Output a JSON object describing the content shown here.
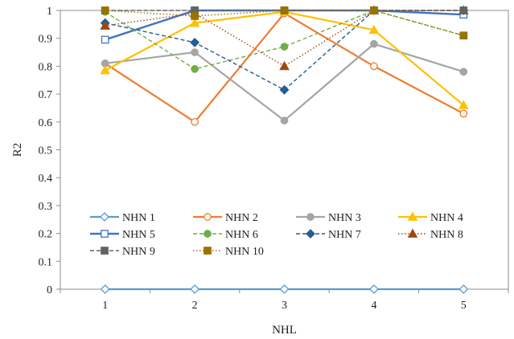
{
  "chart_data": {
    "type": "line",
    "title": "",
    "xlabel": "NHL",
    "ylabel": "R2",
    "categories": [
      "1",
      "2",
      "3",
      "4",
      "5"
    ],
    "ylim": [
      0,
      1
    ],
    "yticks": [
      "0",
      "0.1",
      "0.2",
      "0.3",
      "0.4",
      "0.5",
      "0.6",
      "0.7",
      "0.8",
      "0.9",
      "1"
    ],
    "grid": false,
    "legend": "bottom-inside",
    "series": [
      {
        "name": "NHN 1",
        "values": [
          0.0,
          0.0,
          0.0,
          0.0,
          0.0
        ],
        "color": "#5b9bd5",
        "dash": "solid",
        "marker": "diamond-open",
        "width": 2.2
      },
      {
        "name": "NHN 2",
        "values": [
          0.81,
          0.6,
          0.99,
          0.8,
          0.63
        ],
        "color": "#ed7d31",
        "dash": "solid",
        "marker": "circle-open",
        "width": 2.2
      },
      {
        "name": "NHN 3",
        "values": [
          0.81,
          0.85,
          0.605,
          0.88,
          0.78
        ],
        "color": "#a5a5a5",
        "dash": "solid",
        "marker": "circle",
        "width": 2.2
      },
      {
        "name": "NHN 4",
        "values": [
          0.785,
          0.955,
          0.995,
          0.93,
          0.66
        ],
        "color": "#ffc000",
        "dash": "solid",
        "marker": "triangle",
        "width": 2.2
      },
      {
        "name": "NHN 5",
        "values": [
          0.895,
          1.0,
          1.0,
          1.0,
          0.985
        ],
        "color": "#4472c4",
        "dash": "solid",
        "marker": "square-open",
        "width": 2.4
      },
      {
        "name": "NHN 6",
        "values": [
          0.995,
          0.79,
          0.87,
          1.0,
          0.91
        ],
        "color": "#70ad47",
        "dash": "dashed",
        "marker": "circle",
        "width": 1.4
      },
      {
        "name": "NHN 7",
        "values": [
          0.955,
          0.885,
          0.715,
          1.0,
          1.0
        ],
        "color": "#255e91",
        "dash": "dashed",
        "marker": "diamond",
        "width": 1.4
      },
      {
        "name": "NHN 8",
        "values": [
          0.945,
          0.99,
          0.8,
          1.0,
          1.0
        ],
        "color": "#9e480e",
        "dash": "dotted",
        "marker": "triangle",
        "width": 1.4
      },
      {
        "name": "NHN 9",
        "values": [
          1.0,
          1.0,
          1.0,
          1.0,
          1.0
        ],
        "color": "#636363",
        "dash": "dashed",
        "marker": "square",
        "width": 1.4
      },
      {
        "name": "NHN 10",
        "values": [
          1.0,
          0.98,
          1.0,
          1.0,
          0.91
        ],
        "color": "#997300",
        "dash": "dotted",
        "marker": "square",
        "width": 1.4
      }
    ]
  }
}
